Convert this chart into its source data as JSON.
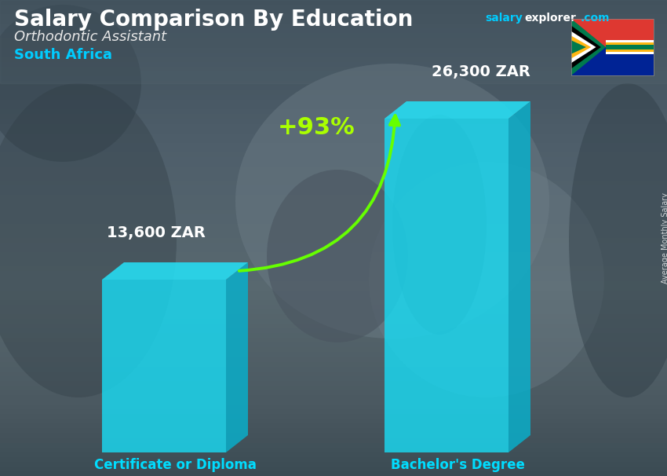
{
  "title": "Salary Comparison By Education",
  "subtitle": "Orthodontic Assistant",
  "country": "South Africa",
  "bars": [
    {
      "label": "Certificate or Diploma",
      "value": 13600,
      "display": "13,600 ZAR"
    },
    {
      "label": "Bachelor's Degree",
      "value": 26300,
      "display": "26,300 ZAR"
    }
  ],
  "bar_color_face": "#1ad8f0",
  "bar_color_lighter": "#40e8ff",
  "bar_color_side": "#08b0cc",
  "bar_color_top": "#25dff5",
  "pct_change": "+93%",
  "pct_color": "#aaff00",
  "arrow_color": "#66ff00",
  "title_color": "#ffffff",
  "subtitle_color": "#e8e8e8",
  "country_color": "#00ccff",
  "label_color": "#00ddff",
  "value_color": "#ffffff",
  "watermark_salary": "salary",
  "watermark_explorer": "explorer",
  "watermark_com": ".com",
  "watermark_color_salary": "#00ccff",
  "watermark_color_rest": "#ffffff",
  "side_label": "Average Monthly Salary",
  "bg_top": "#5a6b78",
  "bg_bottom": "#3a4a55",
  "figsize": [
    8.5,
    6.06
  ],
  "dpi": 100
}
